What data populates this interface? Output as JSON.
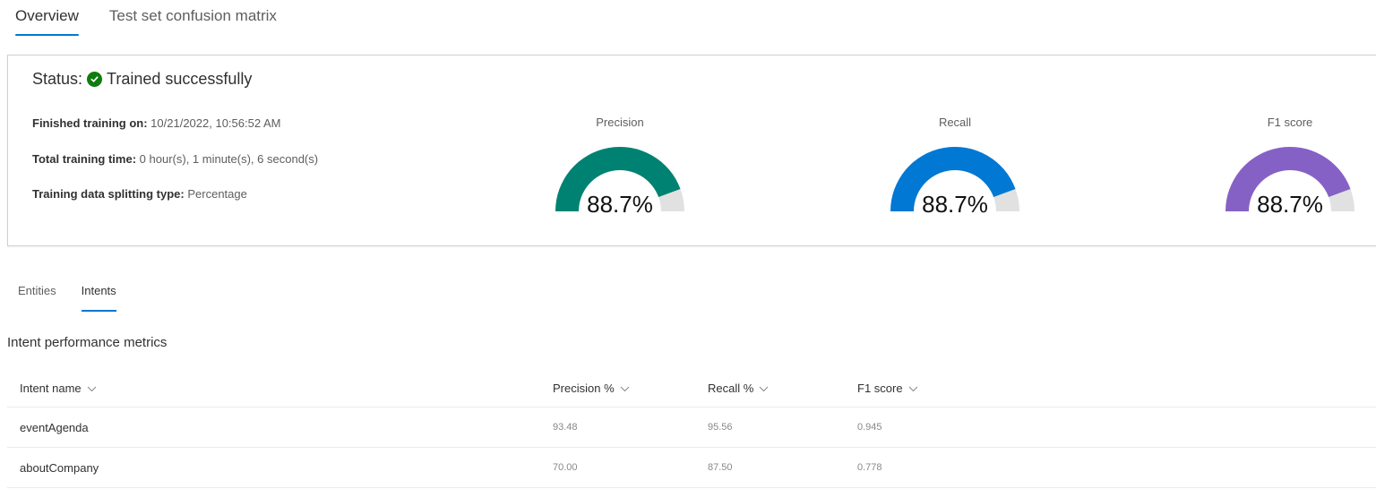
{
  "top_tabs": [
    {
      "label": "Overview",
      "active": true
    },
    {
      "label": "Test set confusion matrix",
      "active": false
    }
  ],
  "summary": {
    "status_label": "Status:",
    "status_icon": "check-circle-icon",
    "status_value": "Trained successfully",
    "status_color": "#107c10",
    "finished_label": "Finished training on:",
    "finished_value": "10/21/2022, 10:56:52 AM",
    "time_label": "Total training time:",
    "time_value": "0 hour(s), 1 minute(s), 6 second(s)",
    "split_label": "Training data splitting type:",
    "split_value": "Percentage"
  },
  "gauges": [
    {
      "label": "Precision",
      "value": "88.7%",
      "percent": 88.7,
      "color": "#008272"
    },
    {
      "label": "Recall",
      "value": "88.7%",
      "percent": 88.7,
      "color": "#0078d4"
    },
    {
      "label": "F1 score",
      "value": "88.7%",
      "percent": 88.7,
      "color": "#8661c5"
    }
  ],
  "sub_tabs": [
    {
      "label": "Entities",
      "active": false
    },
    {
      "label": "Intents",
      "active": true
    }
  ],
  "section_title": "Intent performance metrics",
  "table": {
    "columns": [
      "Intent name",
      "Precision %",
      "Recall %",
      "F1 score"
    ],
    "rows": [
      [
        "eventAgenda",
        "93.48",
        "95.56",
        "0.945"
      ],
      [
        "aboutCompany",
        "70.00",
        "87.50",
        "0.778"
      ]
    ]
  }
}
